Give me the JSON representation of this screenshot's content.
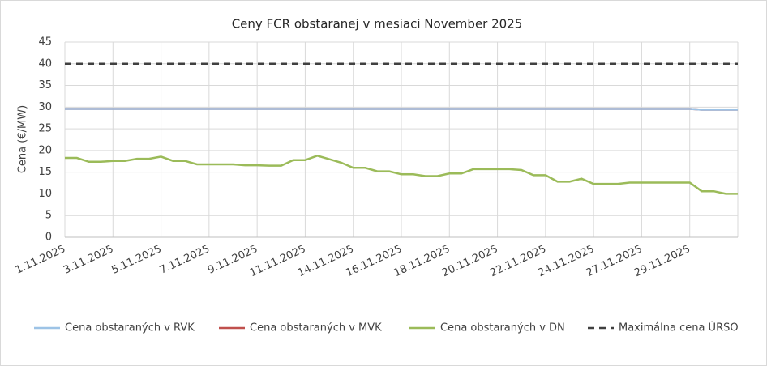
{
  "chart_data": {
    "type": "line",
    "title": "Ceny FCR obstaranej v mesiaci November 2025",
    "y_label": "Cena (€/MW)",
    "categories": [
      "1.11.2025",
      null,
      null,
      null,
      "3.11.2025",
      null,
      null,
      null,
      "5.11.2025",
      null,
      null,
      null,
      "7.11.2025",
      null,
      null,
      null,
      "9.11.2025",
      null,
      null,
      null,
      "11.11.2025",
      null,
      null,
      null,
      "14.11.2025",
      null,
      null,
      null,
      "16.11.2025",
      null,
      null,
      null,
      "18.11.2025",
      null,
      null,
      null,
      "20.11.2025",
      null,
      null,
      null,
      "22.11.2025",
      null,
      null,
      null,
      "24.11.2025",
      null,
      null,
      null,
      "27.11.2025",
      null,
      null,
      null,
      "29.11.2025",
      null,
      null,
      null,
      null
    ],
    "series": [
      {
        "name": "Cena obstaraných v MVK",
        "color": "#c0504d",
        "dashed": false,
        "values": [
          29.6,
          29.6,
          29.6,
          29.6,
          29.6,
          29.6,
          29.6,
          29.6,
          29.6,
          29.6,
          29.6,
          29.6,
          29.6,
          29.6,
          29.6,
          29.6,
          29.6,
          29.6,
          29.6,
          29.6,
          29.6,
          29.6,
          29.6,
          29.6,
          29.6,
          29.6,
          29.6,
          29.6,
          29.6,
          29.6,
          29.6,
          29.6,
          29.6,
          29.6,
          29.6,
          29.6,
          29.6,
          29.6,
          29.6,
          29.6,
          29.6,
          29.6,
          29.6,
          29.6,
          29.6,
          29.6,
          29.6,
          29.6,
          29.6,
          29.6,
          29.6,
          29.6,
          29.6,
          29.4,
          29.4,
          29.4,
          29.4
        ]
      },
      {
        "name": "Cena obstaraných v RVK",
        "color": "#9dc3e6",
        "dashed": false,
        "values": [
          29.6,
          29.6,
          29.6,
          29.6,
          29.6,
          29.6,
          29.6,
          29.6,
          29.6,
          29.6,
          29.6,
          29.6,
          29.6,
          29.6,
          29.6,
          29.6,
          29.6,
          29.6,
          29.6,
          29.6,
          29.6,
          29.6,
          29.6,
          29.6,
          29.6,
          29.6,
          29.6,
          29.6,
          29.6,
          29.6,
          29.6,
          29.6,
          29.6,
          29.6,
          29.6,
          29.6,
          29.6,
          29.6,
          29.6,
          29.6,
          29.6,
          29.6,
          29.6,
          29.6,
          29.6,
          29.6,
          29.6,
          29.6,
          29.6,
          29.6,
          29.6,
          29.6,
          29.6,
          29.4,
          29.4,
          29.4,
          29.4
        ]
      },
      {
        "name": "Cena obstaraných v DN",
        "color": "#9bbb59",
        "dashed": false,
        "values": [
          18.3,
          18.3,
          17.4,
          17.4,
          17.6,
          17.6,
          18.1,
          18.1,
          18.6,
          17.6,
          17.6,
          16.8,
          16.8,
          16.8,
          16.8,
          16.6,
          16.6,
          16.5,
          16.5,
          17.8,
          17.8,
          18.8,
          18.0,
          17.2,
          16.0,
          16.0,
          15.2,
          15.2,
          14.5,
          14.5,
          14.1,
          14.1,
          14.7,
          14.7,
          15.7,
          15.7,
          15.7,
          15.7,
          15.5,
          14.3,
          14.3,
          12.8,
          12.8,
          13.5,
          12.3,
          12.3,
          12.3,
          12.6,
          12.6,
          12.6,
          12.6,
          12.6,
          12.6,
          10.6,
          10.6,
          10.0,
          10.0
        ]
      },
      {
        "name": "Maximálna cena ÚRSO",
        "color": "#404040",
        "dashed": true,
        "values": [
          40,
          40,
          40,
          40,
          40,
          40,
          40,
          40,
          40,
          40,
          40,
          40,
          40,
          40,
          40,
          40,
          40,
          40,
          40,
          40,
          40,
          40,
          40,
          40,
          40,
          40,
          40,
          40,
          40,
          40,
          40,
          40,
          40,
          40,
          40,
          40,
          40,
          40,
          40,
          40,
          40,
          40,
          40,
          40,
          40,
          40,
          40,
          40,
          40,
          40,
          40,
          40,
          40,
          40,
          40,
          40,
          40
        ]
      }
    ],
    "legend_order": [
      1,
      0,
      2,
      3
    ],
    "ylim": [
      0,
      45
    ],
    "yticks": [
      0,
      5,
      10,
      15,
      20,
      25,
      30,
      35,
      40,
      45
    ],
    "grid": true
  }
}
